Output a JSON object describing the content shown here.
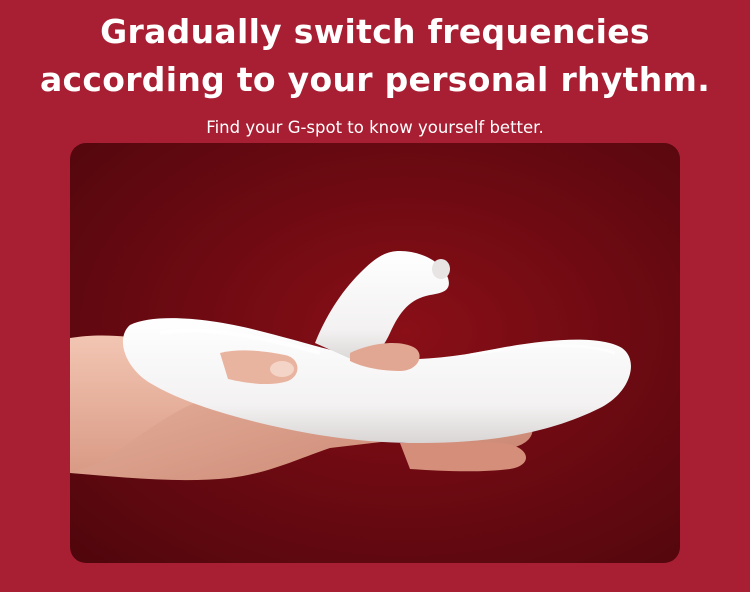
{
  "headline": {
    "line1": "Gradually switch frequencies",
    "line2": "according to your personal rhythm."
  },
  "subheadline": "Find your G-spot to know yourself better.",
  "colors": {
    "page_background": "#a81f33",
    "panel_background": "#6e0a12",
    "text": "#ffffff"
  }
}
